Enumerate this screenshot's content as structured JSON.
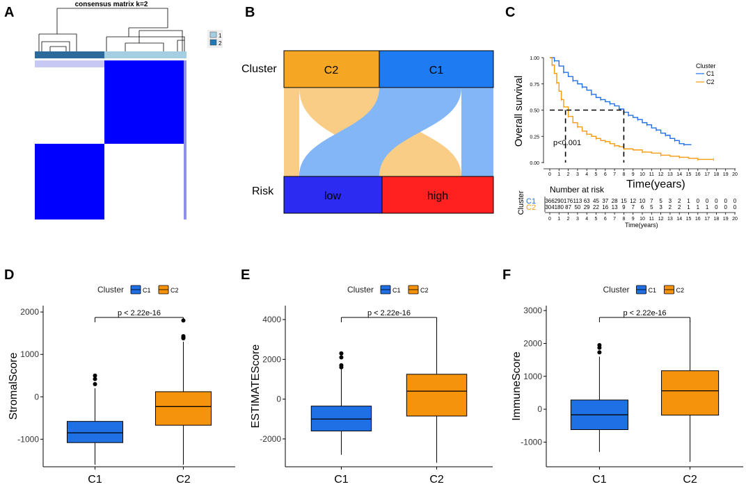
{
  "panels": {
    "A": {
      "letter": "A",
      "title": "consensus matrix k=2",
      "legend": [
        "1",
        "2"
      ],
      "colors": {
        "c1": "#a6cee3",
        "c2": "#1f78b4",
        "block": "#0000ff"
      }
    },
    "B": {
      "letter": "B",
      "row_labels": [
        "Cluster",
        "Risk"
      ],
      "top_boxes": [
        "C2",
        "C1"
      ],
      "bottom_boxes": [
        "low",
        "high"
      ],
      "colors": {
        "C2": "#f5a623",
        "C1": "#1f7bf2",
        "low": "#2b2bf2",
        "high": "#ff2020"
      }
    },
    "C": {
      "letter": "C",
      "legend_title": "Cluster",
      "legend_items": [
        "C1",
        "C2"
      ],
      "ylabel": "Overall survival",
      "xlabel": "Time(years)",
      "pvalue": "p<0.001",
      "yticks": [
        "0.00",
        "0.25",
        "0.50",
        "0.75",
        "1.00"
      ],
      "xticks": [
        "0",
        "1",
        "2",
        "3",
        "4",
        "5",
        "6",
        "7",
        "8",
        "9",
        "10",
        "11",
        "12",
        "13",
        "14",
        "15",
        "16",
        "17",
        "18",
        "19",
        "20"
      ],
      "risk_table": {
        "title": "Number at risk",
        "ylabel": "Cluster",
        "xlabel": "Time(years)",
        "rows": [
          {
            "label": "C1",
            "values": [
              "366",
              "290",
              "176",
              "113",
              "63",
              "45",
              "37",
              "28",
              "15",
              "12",
              "10",
              "7",
              "5",
              "3",
              "2",
              "1",
              "0",
              "0",
              "0",
              "0",
              "0"
            ]
          },
          {
            "label": "C2",
            "values": [
              "304",
              "180",
              "87",
              "50",
              "29",
              "22",
              "16",
              "13",
              "9",
              "7",
              "6",
              "5",
              "3",
              "2",
              "2",
              "1",
              "1",
              "1",
              "0",
              "0",
              "0"
            ]
          }
        ]
      },
      "colors": {
        "C1": "#1f6fe5",
        "C2": "#f59a0c"
      }
    },
    "D": {
      "letter": "D"
    },
    "E": {
      "letter": "E"
    },
    "F": {
      "letter": "F"
    }
  },
  "chart_data": [
    {
      "type": "survival",
      "panel": "C",
      "x": [
        0,
        1,
        2,
        3,
        4,
        5,
        6,
        7,
        8,
        9,
        10,
        11,
        12,
        13,
        14,
        15,
        16,
        17,
        18,
        19,
        20
      ],
      "xlim": [
        0,
        20
      ],
      "ylim": [
        0,
        1
      ],
      "series": [
        {
          "name": "C1",
          "x": [
            0,
            0.5,
            1,
            1.5,
            2,
            2.5,
            3,
            3.5,
            4,
            4.5,
            5,
            5.5,
            6,
            6.5,
            7,
            7.5,
            8,
            8.5,
            9,
            9.5,
            10,
            10.5,
            11,
            11.5,
            12,
            12.5,
            13,
            13.5,
            14,
            14.5,
            15.3
          ],
          "y": [
            1.0,
            0.97,
            0.92,
            0.86,
            0.82,
            0.78,
            0.75,
            0.72,
            0.69,
            0.65,
            0.62,
            0.6,
            0.58,
            0.56,
            0.54,
            0.51,
            0.48,
            0.45,
            0.43,
            0.41,
            0.38,
            0.36,
            0.33,
            0.31,
            0.28,
            0.26,
            0.23,
            0.21,
            0.18,
            0.17,
            0.17
          ]
        },
        {
          "name": "C2",
          "x": [
            0,
            0.25,
            0.5,
            0.75,
            1,
            1.25,
            1.5,
            2,
            2.5,
            3,
            3.5,
            4,
            4.5,
            5,
            5.5,
            6,
            6.5,
            7,
            7.5,
            8,
            9,
            10,
            11,
            12,
            13,
            14,
            15,
            16,
            17,
            17.7
          ],
          "y": [
            1.0,
            0.93,
            0.85,
            0.76,
            0.68,
            0.6,
            0.53,
            0.44,
            0.38,
            0.34,
            0.3,
            0.27,
            0.25,
            0.23,
            0.21,
            0.2,
            0.18,
            0.16,
            0.15,
            0.13,
            0.12,
            0.1,
            0.09,
            0.07,
            0.06,
            0.05,
            0.04,
            0.03,
            0.03,
            0.03
          ]
        }
      ],
      "median_line": 0.5,
      "medians": {
        "C2": 1.7,
        "C1": 8.0
      }
    },
    {
      "type": "box",
      "panel": "D",
      "ylabel": "StromalScore",
      "categories": [
        "C1",
        "C2"
      ],
      "legend_title": "Cluster",
      "pvalue": "p < 2.22e-16",
      "ylim": [
        -1650,
        2150
      ],
      "yticks": [
        -1000,
        0,
        1000,
        2000
      ],
      "ytick_labels": [
        "-1000",
        "0",
        "1000",
        "2000"
      ],
      "boxes": [
        {
          "name": "C1",
          "min": -1600,
          "q1": -1080,
          "median": -850,
          "q3": -580,
          "max": 200,
          "outliers": [
            300,
            420,
            500
          ],
          "color": "#1f6fe5"
        },
        {
          "name": "C2",
          "min": -1600,
          "q1": -670,
          "median": -230,
          "q3": 120,
          "max": 1300,
          "outliers": [
            1380,
            1400,
            1430,
            1800
          ],
          "color": "#f5940c"
        }
      ]
    },
    {
      "type": "box",
      "panel": "E",
      "ylabel": "ESTIMATEScore",
      "categories": [
        "C1",
        "C2"
      ],
      "legend_title": "Cluster",
      "pvalue": "p < 2.22e-16",
      "ylim": [
        -3400,
        4700
      ],
      "yticks": [
        -2000,
        0,
        2000,
        4000
      ],
      "ytick_labels": [
        "-2000",
        "0",
        "2000",
        "4000"
      ],
      "boxes": [
        {
          "name": "C1",
          "min": -2800,
          "q1": -1600,
          "median": -1000,
          "q3": -350,
          "max": 1500,
          "outliers": [
            1600,
            1700,
            2100,
            2300
          ],
          "color": "#1f6fe5"
        },
        {
          "name": "C2",
          "min": -3200,
          "q1": -850,
          "median": 400,
          "q3": 1250,
          "max": 4100,
          "outliers": [],
          "color": "#f5940c"
        }
      ]
    },
    {
      "type": "box",
      "panel": "F",
      "ylabel": "ImmuneScore",
      "categories": [
        "C1",
        "C2"
      ],
      "legend_title": "Cluster",
      "pvalue": "p < 2.22e-16",
      "ylim": [
        -1750,
        3150
      ],
      "yticks": [
        -1000,
        0,
        1000,
        2000,
        3000
      ],
      "ytick_labels": [
        "-1000",
        "0",
        "1000",
        "2000",
        "3000"
      ],
      "boxes": [
        {
          "name": "C1",
          "min": -1300,
          "q1": -620,
          "median": -170,
          "q3": 280,
          "max": 1600,
          "outliers": [
            1730,
            1870,
            1950
          ],
          "color": "#1f6fe5"
        },
        {
          "name": "C2",
          "min": -1600,
          "q1": -180,
          "median": 560,
          "q3": 1170,
          "max": 2700,
          "outliers": [],
          "color": "#f5940c"
        }
      ]
    }
  ]
}
